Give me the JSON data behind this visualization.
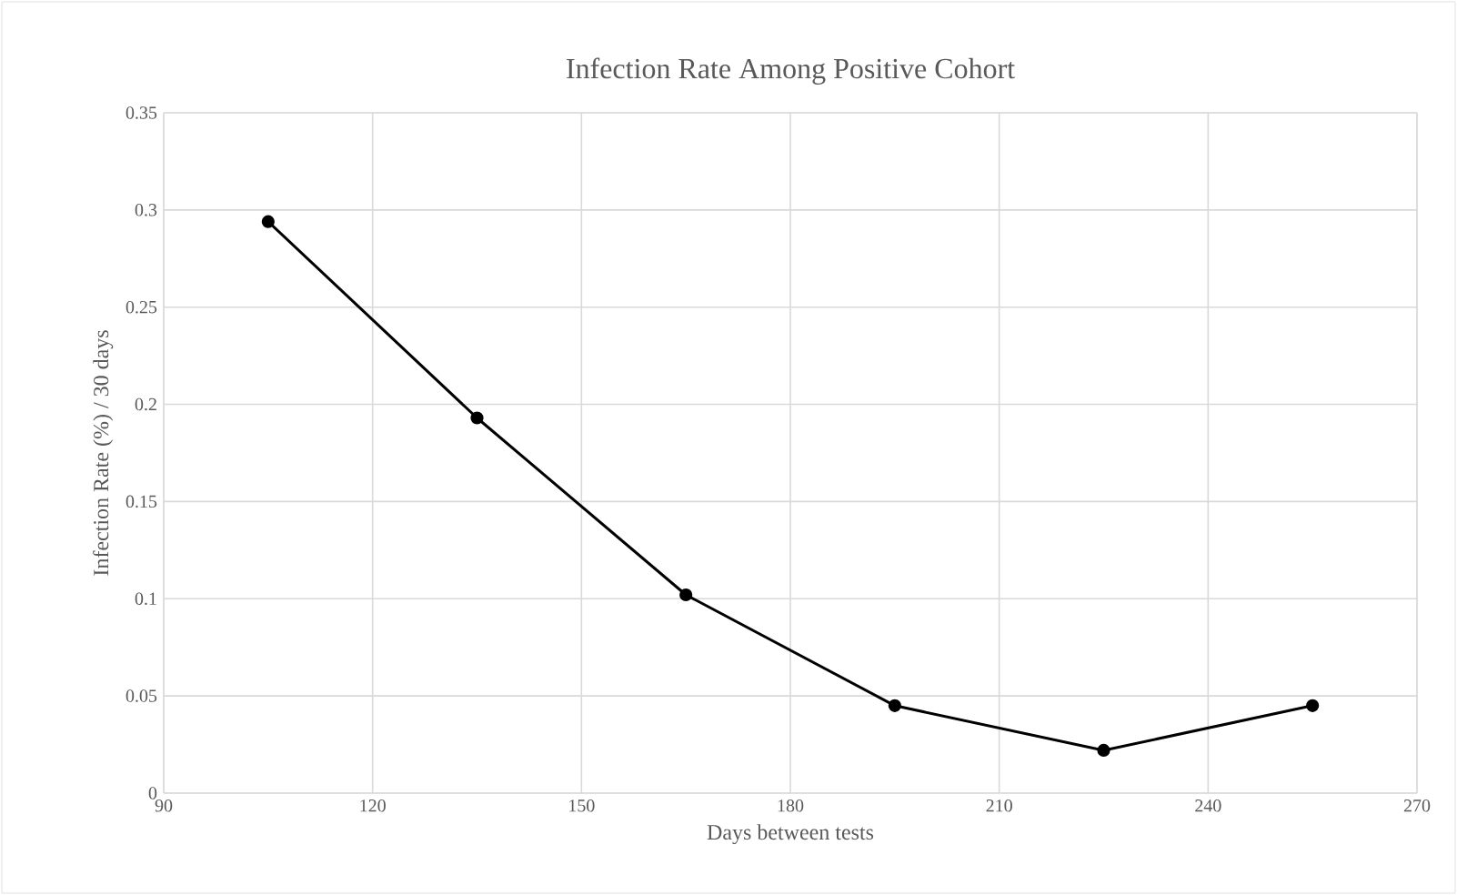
{
  "chart_data": {
    "type": "line",
    "title": "Infection Rate Among Positive Cohort",
    "xlabel": "Days between tests",
    "ylabel": "Infection Rate (%) / 30 days",
    "x": [
      105,
      135,
      165,
      195,
      225,
      255
    ],
    "series": [
      {
        "color": "#000000",
        "values": [
          0.294,
          0.193,
          0.102,
          0.045,
          0.022,
          0.045
        ]
      }
    ],
    "xlim": [
      90,
      270
    ],
    "xticks": [
      90,
      120,
      150,
      180,
      210,
      240,
      270
    ],
    "ylim": [
      0,
      0.35
    ],
    "yticks": [
      0,
      0.05,
      0.1,
      0.15,
      0.2,
      0.25,
      0.3,
      0.35
    ],
    "grid": true,
    "marker": "circle",
    "line_style": "solid"
  }
}
